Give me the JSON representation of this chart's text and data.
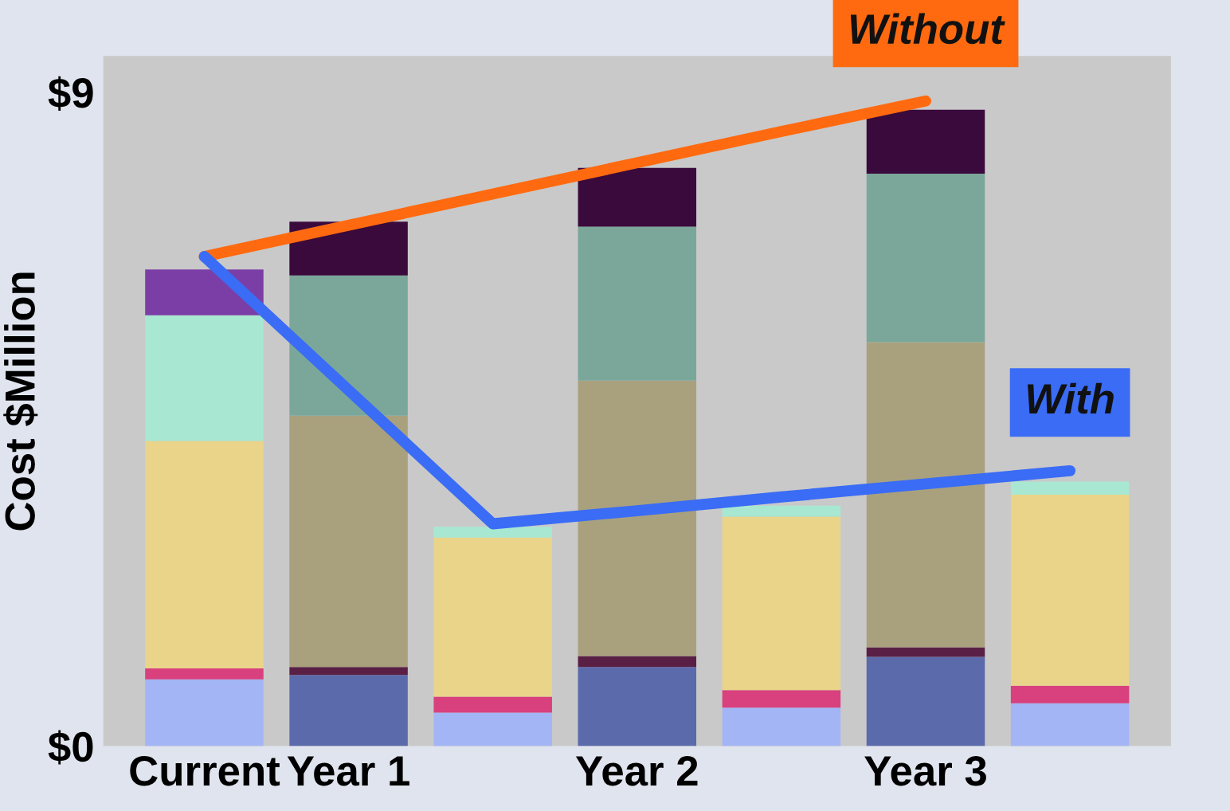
{
  "chart_data": {
    "type": "bar",
    "stacked": true,
    "ylabel": "Cost $Million",
    "categories": [
      "Current",
      "Year 1",
      null,
      "Year 2",
      null,
      "Year 3",
      null
    ],
    "ylim": [
      0,
      9.5
    ],
    "yticks": [
      {
        "value": 0,
        "label": "$0"
      },
      {
        "value": 9,
        "label": "$9"
      }
    ],
    "grid": false,
    "legend": false,
    "series": [
      {
        "values": [
          0.92,
          0.98,
          0.46,
          1.09,
          0.53,
          1.23,
          0.59
        ],
        "colors": [
          "#a3b5f5",
          "#5b6aab",
          "#a3b5f5",
          "#5b6aab",
          "#a3b5f5",
          "#5b6aab",
          "#a3b5f5"
        ]
      },
      {
        "values": [
          0.15,
          0.11,
          0.22,
          0.15,
          0.24,
          0.13,
          0.24
        ],
        "colors": [
          "#d8407e",
          "#5a1f45",
          "#d8407e",
          "#5a1f45",
          "#d8407e",
          "#5a1f45",
          "#d8407e"
        ]
      },
      {
        "values": [
          3.13,
          3.46,
          2.19,
          3.79,
          2.39,
          4.2,
          2.63
        ],
        "colors": [
          "#ead48a",
          "#a9a17e",
          "#ead48a",
          "#a9a17e",
          "#ead48a",
          "#a9a17e",
          "#ead48a"
        ]
      },
      {
        "values": [
          1.73,
          1.93,
          0.15,
          2.12,
          0.15,
          2.32,
          0.18
        ],
        "colors": [
          "#a8e8d2",
          "#7ba79b",
          "#a8e8d2",
          "#7ba79b",
          "#a8e8d2",
          "#7ba79b",
          "#a8e8d2"
        ]
      },
      {
        "values": [
          0.63,
          0.74,
          null,
          0.81,
          null,
          0.88,
          null
        ],
        "colors": [
          "#7b3ea6",
          "#3a0a3c",
          "#7b3ea6",
          "#3a0a3c",
          "#7b3ea6",
          "#3a0a3c",
          "#7b3ea6"
        ]
      },
      {
        "type": "line",
        "name": "Without",
        "color": "#ff6a10",
        "values": [
          6.74,
          7.17,
          7.6,
          8.03,
          8.46,
          8.88,
          null
        ]
      },
      {
        "type": "line",
        "name": "With",
        "color": "#3a6cf5",
        "values": [
          6.74,
          4.9,
          3.06,
          3.24,
          3.43,
          3.61,
          3.79
        ]
      }
    ]
  }
}
